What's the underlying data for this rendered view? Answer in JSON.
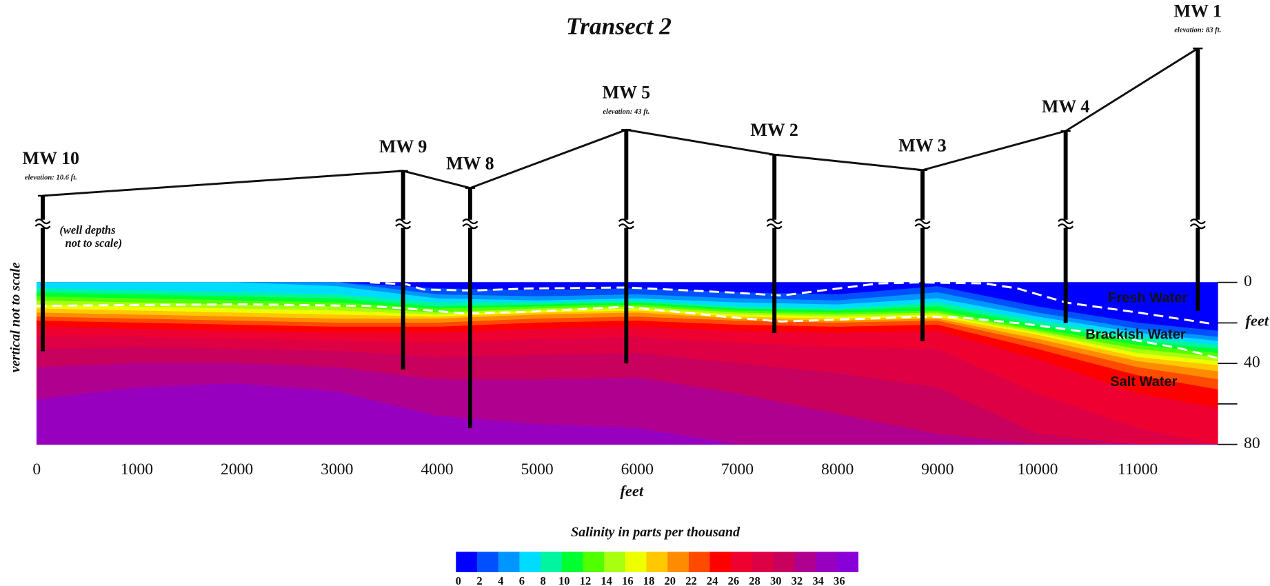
{
  "chart_data": {
    "type": "contour",
    "title": "Transect 2",
    "x_label": "feet",
    "y_label": "feet",
    "y_side_note": "vertical not to scale",
    "note_lines": [
      "(well depths",
      "not to scale)"
    ],
    "xlim": [
      0,
      11800
    ],
    "xticks": [
      0,
      1000,
      2000,
      3000,
      4000,
      5000,
      6000,
      7000,
      8000,
      9000,
      10000,
      11000
    ],
    "ylim": [
      0,
      80
    ],
    "yticks": [
      0,
      40,
      80
    ],
    "yminor_ticks": [
      20,
      60
    ],
    "x": [
      0,
      1000,
      2000,
      3000,
      4000,
      5000,
      6000,
      7000,
      8000,
      9000,
      10000,
      11000,
      11800
    ],
    "isolines": [
      {
        "level": 2,
        "depths": [
          0,
          0,
          0,
          0,
          3,
          4,
          3,
          5,
          6,
          2,
          12,
          20,
          24
        ]
      },
      {
        "level": 4,
        "depths": [
          0,
          0,
          0,
          0,
          6,
          7,
          6,
          8,
          9,
          5,
          15,
          23,
          27
        ]
      },
      {
        "level": 6,
        "depths": [
          0,
          0,
          0,
          2,
          8,
          9,
          8,
          10,
          11,
          8,
          17,
          25,
          29
        ]
      },
      {
        "level": 8,
        "depths": [
          3,
          4,
          5,
          6,
          10,
          10,
          9,
          12,
          13,
          10,
          19,
          27,
          31
        ]
      },
      {
        "level": 10,
        "depths": [
          5,
          6,
          7,
          8,
          12,
          11,
          10,
          13,
          14,
          12,
          21,
          29,
          33
        ]
      },
      {
        "level": 12,
        "depths": [
          7,
          8,
          9,
          10,
          13,
          12,
          11,
          14,
          15,
          14,
          23,
          31,
          35
        ]
      },
      {
        "level": 14,
        "depths": [
          9,
          10,
          11,
          12,
          15,
          13,
          12,
          15,
          16,
          15,
          24,
          33,
          37
        ]
      },
      {
        "level": 16,
        "depths": [
          11,
          12,
          13,
          14,
          16,
          14,
          13,
          16,
          17,
          16,
          25,
          35,
          39
        ]
      },
      {
        "level": 18,
        "depths": [
          13,
          14,
          15,
          16,
          17,
          15,
          14,
          17,
          18,
          17,
          26,
          37,
          41
        ]
      },
      {
        "level": 20,
        "depths": [
          15,
          16,
          17,
          18,
          18,
          16,
          15,
          18,
          19,
          18,
          28,
          39,
          44
        ]
      },
      {
        "level": 22,
        "depths": [
          17,
          18,
          19,
          20,
          20,
          18,
          17,
          19,
          20,
          19,
          30,
          42,
          48
        ]
      },
      {
        "level": 24,
        "depths": [
          19,
          20,
          21,
          22,
          22,
          20,
          19,
          21,
          22,
          21,
          33,
          46,
          53
        ]
      },
      {
        "level": 26,
        "depths": [
          22,
          23,
          24,
          25,
          25,
          23,
          22,
          24,
          25,
          24,
          38,
          55,
          62
        ]
      },
      {
        "level": 28,
        "depths": [
          27,
          27,
          28,
          29,
          30,
          28,
          27,
          30,
          32,
          33,
          55,
          72,
          80
        ]
      },
      {
        "level": 30,
        "depths": [
          33,
          32,
          33,
          34,
          37,
          36,
          35,
          40,
          45,
          52,
          75,
          80,
          80
        ]
      },
      {
        "level": 32,
        "depths": [
          42,
          40,
          40,
          42,
          48,
          48,
          47,
          55,
          65,
          75,
          80,
          80,
          80
        ]
      },
      {
        "level": 34,
        "depths": [
          58,
          52,
          50,
          54,
          66,
          70,
          72,
          80,
          80,
          80,
          80,
          80,
          80
        ]
      }
    ],
    "boundaries": [
      {
        "x": [
          3330,
          3700,
          3860,
          4350,
          4920,
          5890,
          6950,
          7440,
          7760,
          8410,
          8820,
          9470,
          9800,
          10290,
          11020,
          11750
        ],
        "depths": [
          0,
          1,
          3.5,
          4,
          3,
          2.5,
          5,
          6.5,
          4.5,
          0.5,
          0,
          0.5,
          3,
          10,
          15,
          20.5
        ]
      },
      {
        "x": [
          0,
          850,
          2070,
          3290,
          3700,
          4270,
          4920,
          5890,
          6950,
          7440,
          8170,
          8820,
          9230,
          9880,
          10610,
          11420,
          11790
        ],
        "depths": [
          11.6,
          11.2,
          10.8,
          11.6,
          12.9,
          15.3,
          14.5,
          12,
          17.3,
          19.3,
          18.1,
          16.9,
          17.3,
          20.5,
          25.3,
          32.5,
          37.3
        ]
      }
    ],
    "zone_labels": [
      "Fresh Water",
      "Brackish Water",
      "Salt Water"
    ],
    "wells": [
      {
        "name": "MW 10",
        "x": 60,
        "elevation": 10.6,
        "elevation_label": "elevation: 10.6 ft.",
        "bottom_depth": 34
      },
      {
        "name": "MW 9",
        "x": 3660,
        "elevation": 22.8,
        "bottom_depth": 43
      },
      {
        "name": "MW 8",
        "x": 4330,
        "elevation": 14.4,
        "bottom_depth": 72
      },
      {
        "name": "MW 5",
        "x": 5890,
        "elevation": 43,
        "elevation_label": "elevation: 43 ft.",
        "bottom_depth": 40
      },
      {
        "name": "MW 2",
        "x": 7370,
        "elevation": 30.8,
        "bottom_depth": 25
      },
      {
        "name": "MW 3",
        "x": 8850,
        "elevation": 23.2,
        "bottom_depth": 29
      },
      {
        "name": "MW 4",
        "x": 10280,
        "elevation": 42.4,
        "bottom_depth": 20
      },
      {
        "name": "MW 1",
        "x": 11600,
        "elevation": 83,
        "elevation_label": "elevation: 83 ft.",
        "bottom_depth": 14
      }
    ],
    "colorbar": {
      "title": "Salinity in parts per thousand",
      "ticks": [
        0,
        2,
        4,
        6,
        8,
        10,
        12,
        14,
        16,
        18,
        20,
        22,
        24,
        26,
        28,
        30,
        32,
        34,
        36
      ],
      "colors": [
        "#0000ff",
        "#0050ff",
        "#0096ff",
        "#00dcff",
        "#00f5a0",
        "#00ff30",
        "#50ff00",
        "#a8ff10",
        "#eeff00",
        "#ffc800",
        "#ff8c00",
        "#ff4a00",
        "#ff0000",
        "#ee0030",
        "#dd0045",
        "#c8005e",
        "#b00090",
        "#9800c0",
        "#8a00d8"
      ]
    }
  }
}
